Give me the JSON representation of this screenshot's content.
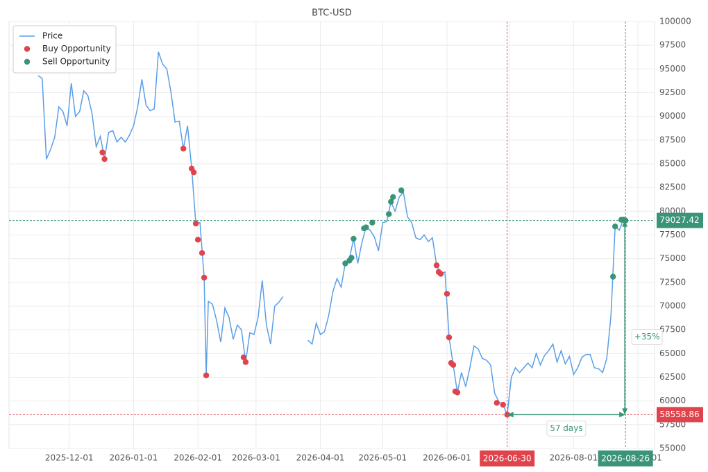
{
  "chart_data": {
    "type": "line",
    "title": "BTC-USD",
    "x": [
      "2025-11-16",
      "2025-11-18",
      "2025-11-20",
      "2025-11-22",
      "2025-11-24",
      "2025-11-26",
      "2025-11-28",
      "2025-11-30",
      "2025-12-02",
      "2025-12-04",
      "2025-12-06",
      "2025-12-08",
      "2025-12-10",
      "2025-12-12",
      "2025-12-14",
      "2025-12-16",
      "2025-12-18",
      "2025-12-20",
      "2025-12-22",
      "2025-12-24",
      "2025-12-26",
      "2025-12-28",
      "2025-12-30",
      "2026-01-01",
      "2026-01-03",
      "2026-01-05",
      "2026-01-07",
      "2026-01-09",
      "2026-01-11",
      "2026-01-13",
      "2026-01-15",
      "2026-01-17",
      "2026-01-19",
      "2026-01-21",
      "2026-01-23",
      "2026-01-25",
      "2026-01-27",
      "2026-01-29",
      "2026-01-31",
      "2026-02-02",
      "2026-02-04",
      "2026-02-05",
      "2026-02-06",
      "2026-02-08",
      "2026-02-10",
      "2026-02-12",
      "2026-02-14",
      "2026-02-16",
      "2026-02-18",
      "2026-02-20",
      "2026-02-22",
      "2026-02-24",
      "2026-02-26",
      "2026-02-28",
      "2026-03-02",
      "2026-03-04",
      "2026-03-06",
      "2026-03-08",
      "2026-03-10",
      "2026-03-12",
      "2026-03-14",
      "2026-03-16",
      "2026-03-26",
      "2026-03-28",
      "2026-03-30",
      "2026-04-01",
      "2026-04-03",
      "2026-04-05",
      "2026-04-07",
      "2026-04-09",
      "2026-04-11",
      "2026-04-13",
      "2026-04-15",
      "2026-04-17",
      "2026-04-19",
      "2026-04-21",
      "2026-04-23",
      "2026-04-25",
      "2026-04-27",
      "2026-04-29",
      "2026-05-01",
      "2026-05-03",
      "2026-05-05",
      "2026-05-07",
      "2026-05-09",
      "2026-05-11",
      "2026-05-13",
      "2026-05-15",
      "2026-05-17",
      "2026-05-19",
      "2026-05-21",
      "2026-05-23",
      "2026-05-25",
      "2026-05-27",
      "2026-05-29",
      "2026-05-31",
      "2026-06-02",
      "2026-06-04",
      "2026-06-06",
      "2026-06-08",
      "2026-06-10",
      "2026-06-12",
      "2026-06-14",
      "2026-06-16",
      "2026-06-18",
      "2026-06-20",
      "2026-06-22",
      "2026-06-24",
      "2026-06-26",
      "2026-06-28",
      "2026-06-30",
      "2026-07-02",
      "2026-07-04",
      "2026-07-06",
      "2026-07-08",
      "2026-07-10",
      "2026-07-12",
      "2026-07-14",
      "2026-07-16",
      "2026-07-18",
      "2026-07-20",
      "2026-07-22",
      "2026-07-24",
      "2026-07-26",
      "2026-07-28",
      "2026-07-30",
      "2026-08-01",
      "2026-08-03",
      "2026-08-05",
      "2026-08-07",
      "2026-08-09",
      "2026-08-11",
      "2026-08-13",
      "2026-08-15",
      "2026-08-17",
      "2026-08-19",
      "2026-08-21",
      "2026-08-23",
      "2026-08-25",
      "2026-08-26"
    ],
    "series": [
      {
        "name": "Price",
        "type": "line",
        "color": "#5a9ee8",
        "values": [
          94300,
          94000,
          85500,
          86500,
          87800,
          91000,
          90500,
          89000,
          93500,
          90000,
          90500,
          92700,
          92200,
          90300,
          86800,
          87900,
          85500,
          88300,
          88500,
          87300,
          87800,
          87300,
          88000,
          89000,
          91000,
          93900,
          91200,
          90600,
          90800,
          96800,
          95500,
          95000,
          92600,
          89400,
          89500,
          86600,
          89000,
          84500,
          78700,
          78800,
          73000,
          62700,
          70500,
          70200,
          68500,
          66200,
          69800,
          68800,
          66500,
          68000,
          67500,
          64100,
          67200,
          67000,
          68800,
          72700,
          68000,
          66000,
          70000,
          70400,
          71000,
          null,
          66400,
          66000,
          68200,
          67000,
          67300,
          69000,
          71500,
          72900,
          72000,
          74500,
          75000,
          77100,
          74500,
          76700,
          78300,
          78000,
          77300,
          75800,
          78800,
          78900,
          81000,
          80000,
          81500,
          82000,
          79400,
          78800,
          77200,
          77000,
          77500,
          76800,
          77200,
          74300,
          73400,
          73600,
          66700,
          63800,
          60900,
          63000,
          61500,
          63500,
          65800,
          65500,
          64500,
          64300,
          63800,
          60800,
          59900,
          59600,
          58558.86,
          62500,
          63500,
          63000,
          63500,
          64000,
          63500,
          65000,
          63800,
          64800,
          65300,
          66000,
          64100,
          65300,
          63900,
          64700,
          62800,
          63500,
          64600,
          64900,
          64900,
          63500,
          63400,
          63000,
          64500,
          69000,
          78400,
          78000,
          79100,
          79027.42
        ]
      },
      {
        "name": "Buy Opportunity",
        "type": "scatter",
        "color": "#e0434b",
        "x": [
          "2025-12-17",
          "2025-12-18",
          "2026-01-25",
          "2026-01-29",
          "2026-01-30",
          "2026-01-31",
          "2026-02-01",
          "2026-02-03",
          "2026-02-04",
          "2026-02-05",
          "2026-02-23",
          "2026-02-24",
          "2026-05-27",
          "2026-05-28",
          "2026-05-29",
          "2026-06-01",
          "2026-06-02",
          "2026-06-03",
          "2026-06-04",
          "2026-06-05",
          "2026-06-06",
          "2026-06-25",
          "2026-06-28",
          "2026-06-30"
        ],
        "values": [
          86200,
          85500,
          86600,
          84500,
          84100,
          78700,
          77000,
          75600,
          73000,
          62700,
          64600,
          64100,
          74300,
          73600,
          73400,
          71300,
          66700,
          64000,
          63800,
          61000,
          60900,
          59800,
          59600,
          58558.86
        ]
      },
      {
        "name": "Sell Opportunity",
        "type": "scatter",
        "color": "#3a9478",
        "x": [
          "2026-04-13",
          "2026-04-15",
          "2026-04-16",
          "2026-04-17",
          "2026-04-22",
          "2026-04-23",
          "2026-04-26",
          "2026-05-04",
          "2026-05-05",
          "2026-05-06",
          "2026-05-10",
          "2026-08-20",
          "2026-08-21",
          "2026-08-24",
          "2026-08-25",
          "2026-08-26"
        ],
        "values": [
          74500,
          74800,
          75100,
          77100,
          78200,
          78300,
          78800,
          79700,
          81000,
          81500,
          82200,
          73100,
          78400,
          79100,
          79100,
          79027.42
        ]
      }
    ],
    "xlim": [
      "2025-11-02",
      "2026-09-09"
    ],
    "xticks": [
      "2025-12-01",
      "2026-01-01",
      "2026-02-01",
      "2026-03-01",
      "2026-04-01",
      "2026-05-01",
      "2026-06-01",
      "2026-07-01",
      "2026-08-01",
      "2026-09-01"
    ],
    "ylim": [
      55000,
      100000
    ],
    "yticks": [
      55000,
      57500,
      60000,
      62500,
      65000,
      67500,
      70000,
      72500,
      75000,
      77500,
      80000,
      82500,
      85000,
      87500,
      90000,
      92500,
      95000,
      97500,
      100000
    ],
    "grid": true,
    "legend": "upper left",
    "hlines": [
      {
        "value": 79027.42,
        "color": "#3a9478"
      },
      {
        "value": 58558.86,
        "color": "#e0434b"
      }
    ],
    "vlines": [
      {
        "x": "2026-06-30",
        "color": "#e0434b"
      },
      {
        "x": "2026-08-26",
        "color": "#3a9478"
      }
    ],
    "annotations": [
      {
        "text": "+35%",
        "color": "#3a9478"
      },
      {
        "text": "57 days",
        "color": "#3a9478"
      }
    ]
  }
}
